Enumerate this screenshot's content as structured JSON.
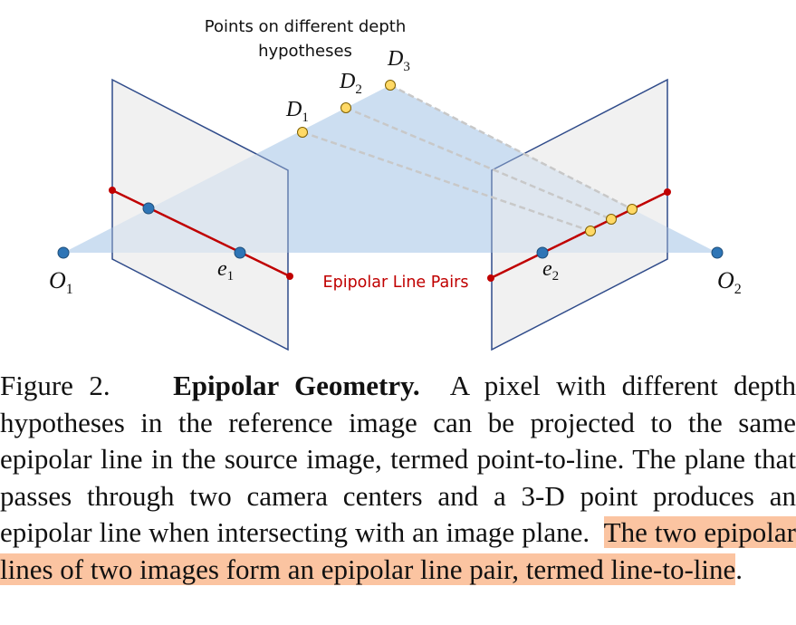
{
  "diagram": {
    "top_label_line1": "Points on different depth",
    "top_label_line2": "hypotheses",
    "depth_labels": [
      {
        "letter": "D",
        "sub": "1"
      },
      {
        "letter": "D",
        "sub": "2"
      },
      {
        "letter": "D",
        "sub": "3"
      }
    ],
    "camera_labels": [
      {
        "letter": "O",
        "sub": "1"
      },
      {
        "letter": "O",
        "sub": "2"
      }
    ],
    "epipole_labels": [
      {
        "letter": "e",
        "sub": "1"
      },
      {
        "letter": "e",
        "sub": "2"
      }
    ],
    "epipolar_pair_label": "Epipolar Line Pairs",
    "colors": {
      "epipolar_line": "#c00000",
      "plane_fill": "#eeeeee",
      "plane_stroke": "#2f4b8a",
      "triangle_fill": "#c9dcf0",
      "blue_point": "#2e75b6",
      "yellow_point": "#ffd966",
      "highlight": "#fbc4a1"
    }
  },
  "caption": {
    "prefix": "Figure 2.",
    "bold": "Epipolar Geometry.",
    "body": "A pixel with different depth hypotheses in the reference image can be projected to the same epipolar line in the source image, termed point-to-line. The plane that passes through two camera centers and a 3-D point produces an epipolar line when intersecting with an image plane.",
    "highlight": "The two epipolar lines of two images form an epipolar line pair, termed line-to-line",
    "suffix": "."
  }
}
